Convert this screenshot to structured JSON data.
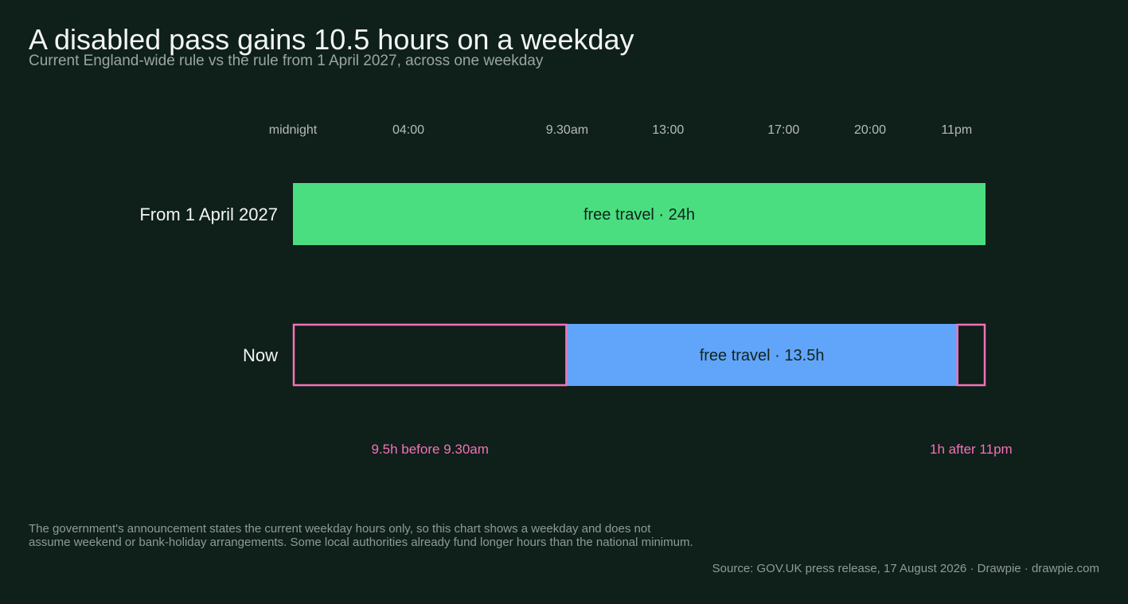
{
  "title": "A disabled pass gains 10.5 hours on a weekday",
  "subtitle": "Current England-wide rule vs the rule from 1 April 2027, across one weekday",
  "footnote": {
    "line1": "The government's announcement states the current weekday hours only, so this chart shows a weekday and does not",
    "line2": "assume weekend or bank-holiday arrangements. Some local authorities already fund longer hours than the national minimum."
  },
  "source": "Source: GOV.UK press release, 17 August 2026  ·  Drawpie · drawpie.com",
  "colors": {
    "background": "#0f1f1a",
    "future_free": "#4ade80",
    "now_free": "#60a5fa",
    "restricted": "#f472b6",
    "axis_text": "#b4bcb8"
  },
  "chart_data": {
    "type": "bar",
    "orientation": "horizontal",
    "x_unit": "hour of day",
    "xlim": [
      0,
      24
    ],
    "ticks": [
      {
        "value": 0,
        "label": "midnight"
      },
      {
        "value": 4,
        "label": "04:00"
      },
      {
        "value": 9.5,
        "label": "9.30am"
      },
      {
        "value": 13,
        "label": "13:00"
      },
      {
        "value": 17,
        "label": "17:00"
      },
      {
        "value": 20,
        "label": "20:00"
      },
      {
        "value": 23,
        "label": "11pm"
      }
    ],
    "rows": [
      {
        "label": "From 1 April 2027",
        "segments": [
          {
            "start": 0,
            "end": 24,
            "kind": "free",
            "label": "free travel · 24h"
          }
        ]
      },
      {
        "label": "Now",
        "segments": [
          {
            "start": 0,
            "end": 9.5,
            "kind": "restricted",
            "label": ""
          },
          {
            "start": 9.5,
            "end": 23,
            "kind": "free",
            "label": "free travel · 13.5h"
          },
          {
            "start": 23,
            "end": 24,
            "kind": "restricted",
            "label": ""
          }
        ]
      }
    ],
    "annotations": [
      {
        "text": "9.5h before 9.30am",
        "x": 4.75
      },
      {
        "text": "1h after 11pm",
        "x": 23.5
      }
    ]
  }
}
